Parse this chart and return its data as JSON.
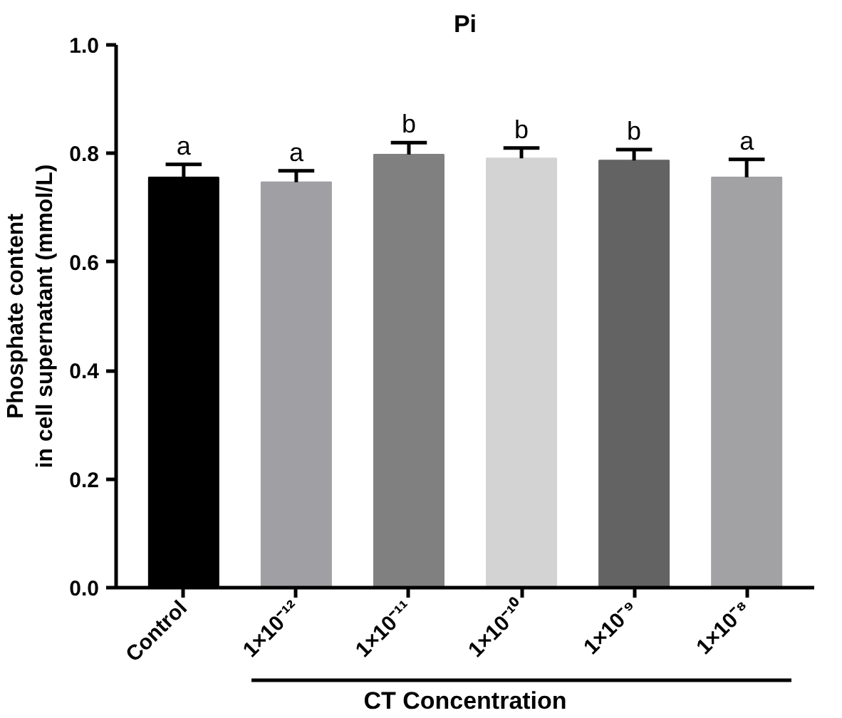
{
  "chart_data": {
    "type": "bar",
    "title": "Pi",
    "xlabel": "CT Concentration",
    "ylabel": "Phosphate content\nin cell supernatant (mmol/L)",
    "categories": [
      "Control",
      "1×10⁻¹²",
      "1×10⁻¹¹",
      "1×10⁻¹⁰",
      "1×10⁻⁹",
      "1×10⁻⁸"
    ],
    "values": [
      0.756,
      0.747,
      0.798,
      0.791,
      0.787,
      0.756
    ],
    "errors": [
      [
        0.756,
        0.78
      ],
      [
        0.747,
        0.768
      ],
      [
        0.798,
        0.82
      ],
      [
        0.791,
        0.81
      ],
      [
        0.787,
        0.807
      ],
      [
        0.756,
        0.789
      ]
    ],
    "colors": [
      "#000000",
      "#a0a0a4",
      "#808080",
      "#d3d3d3",
      "#636363",
      "#a2a2a4"
    ],
    "ylim": [
      0,
      1.0
    ],
    "yticks": [
      {
        "value": 0,
        "label": "0.0"
      },
      0.2,
      0.4,
      0.6,
      0.8,
      {
        "value": 1.0,
        "label": "1.0"
      }
    ],
    "annotations": [
      {
        "text": "a",
        "x": "Control",
        "y": 0.78
      },
      {
        "text": "a",
        "x": "1×10⁻¹²",
        "y": 0.768
      },
      {
        "text": "b",
        "x": "1×10⁻¹¹",
        "y": 0.82
      },
      {
        "text": "b",
        "x": "1×10⁻¹⁰",
        "y": 0.81
      },
      {
        "text": "b",
        "x": "1×10⁻⁹",
        "y": 0.807
      },
      {
        "text": "a",
        "x": "1×10⁻⁸",
        "y": 0.789
      }
    ],
    "grid": false
  }
}
